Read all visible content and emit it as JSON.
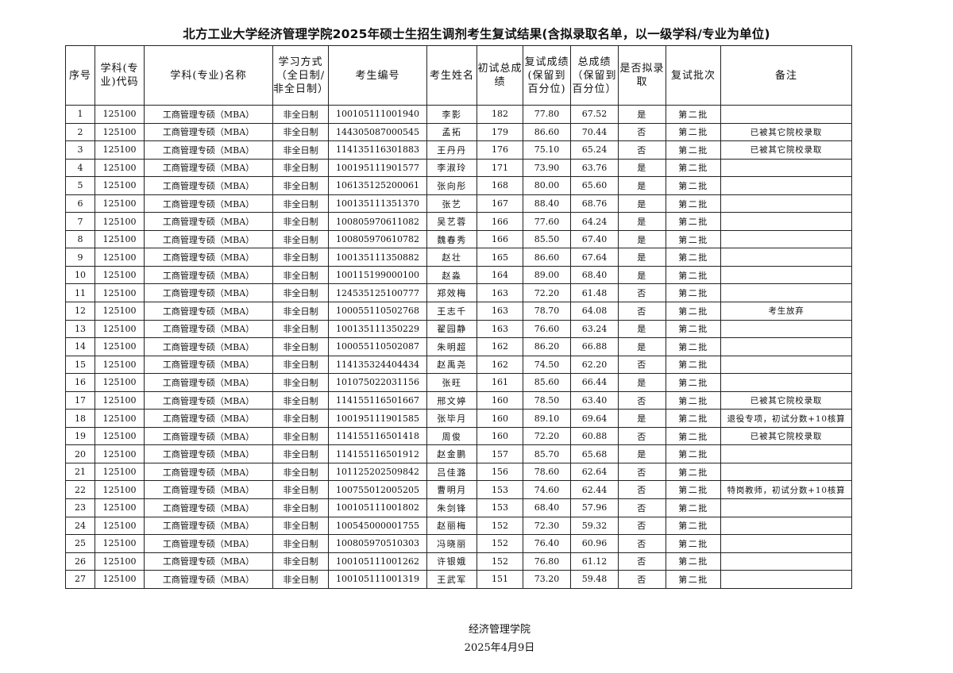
{
  "title": "北方工业大学经济管理学院2025年硕士生招生调剂考生复试结果(含拟录取名单，以一级学科/专业为单位)",
  "headers": [
    "序号",
    "学科(专业)代码",
    "学科(专业)名称",
    "学习方式（全日制/非全日制）",
    "考生编号",
    "考生姓名",
    "初试总成绩",
    "复试成绩(保留到百分位)",
    "总成绩（保留到百分位）",
    "是否拟录取",
    "复试批次",
    "备注"
  ],
  "rows": [
    [
      "1",
      "125100",
      "工商管理专硕（MBA）",
      "非全日制",
      "100105111001940",
      "李影",
      "182",
      "77.80",
      "67.52",
      "是",
      "第二批",
      ""
    ],
    [
      "2",
      "125100",
      "工商管理专硕（MBA）",
      "非全日制",
      "144305087000545",
      "孟拓",
      "179",
      "86.60",
      "70.44",
      "否",
      "第二批",
      "已被其它院校录取"
    ],
    [
      "3",
      "125100",
      "工商管理专硕（MBA）",
      "非全日制",
      "114135116301883",
      "王丹丹",
      "176",
      "75.10",
      "65.24",
      "否",
      "第二批",
      "已被其它院校录取"
    ],
    [
      "4",
      "125100",
      "工商管理专硕（MBA）",
      "非全日制",
      "100195111901577",
      "李淑玲",
      "171",
      "73.90",
      "63.76",
      "是",
      "第二批",
      ""
    ],
    [
      "5",
      "125100",
      "工商管理专硕（MBA）",
      "非全日制",
      "106135125200061",
      "张向彤",
      "168",
      "80.00",
      "65.60",
      "是",
      "第二批",
      ""
    ],
    [
      "6",
      "125100",
      "工商管理专硕（MBA）",
      "非全日制",
      "100135111351370",
      "张艺",
      "167",
      "88.40",
      "68.76",
      "是",
      "第二批",
      ""
    ],
    [
      "7",
      "125100",
      "工商管理专硕（MBA）",
      "非全日制",
      "100805970611082",
      "吴艺蓉",
      "166",
      "77.60",
      "64.24",
      "是",
      "第二批",
      ""
    ],
    [
      "8",
      "125100",
      "工商管理专硕（MBA）",
      "非全日制",
      "100805970610782",
      "魏春秀",
      "166",
      "85.50",
      "67.40",
      "是",
      "第二批",
      ""
    ],
    [
      "9",
      "125100",
      "工商管理专硕（MBA）",
      "非全日制",
      "100135111350882",
      "赵壮",
      "165",
      "86.60",
      "67.64",
      "是",
      "第二批",
      ""
    ],
    [
      "10",
      "125100",
      "工商管理专硕（MBA）",
      "非全日制",
      "100115199000100",
      "赵淼",
      "164",
      "89.00",
      "68.40",
      "是",
      "第二批",
      ""
    ],
    [
      "11",
      "125100",
      "工商管理专硕（MBA）",
      "非全日制",
      "124535125100777",
      "郑效梅",
      "163",
      "72.20",
      "61.48",
      "否",
      "第二批",
      ""
    ],
    [
      "12",
      "125100",
      "工商管理专硕（MBA）",
      "非全日制",
      "100055110502768",
      "王志千",
      "163",
      "78.70",
      "64.08",
      "否",
      "第二批",
      "考生放弃"
    ],
    [
      "13",
      "125100",
      "工商管理专硕（MBA）",
      "非全日制",
      "100135111350229",
      "翟园静",
      "163",
      "76.60",
      "63.24",
      "是",
      "第二批",
      ""
    ],
    [
      "14",
      "125100",
      "工商管理专硕（MBA）",
      "非全日制",
      "100055110502087",
      "朱明超",
      "162",
      "86.20",
      "66.88",
      "是",
      "第二批",
      ""
    ],
    [
      "15",
      "125100",
      "工商管理专硕（MBA）",
      "非全日制",
      "114135324404434",
      "赵禹尧",
      "162",
      "74.50",
      "62.20",
      "否",
      "第二批",
      ""
    ],
    [
      "16",
      "125100",
      "工商管理专硕（MBA）",
      "非全日制",
      "101075022031156",
      "张旺",
      "161",
      "85.60",
      "66.44",
      "是",
      "第二批",
      ""
    ],
    [
      "17",
      "125100",
      "工商管理专硕（MBA）",
      "非全日制",
      "114155116501667",
      "邢文婷",
      "160",
      "78.50",
      "63.40",
      "否",
      "第二批",
      "已被其它院校录取"
    ],
    [
      "18",
      "125100",
      "工商管理专硕（MBA）",
      "非全日制",
      "100195111901585",
      "张毕月",
      "160",
      "89.10",
      "69.64",
      "是",
      "第二批",
      "退役专项，初试分数+10核算"
    ],
    [
      "19",
      "125100",
      "工商管理专硕（MBA）",
      "非全日制",
      "114155116501418",
      "周俊",
      "160",
      "72.20",
      "60.88",
      "否",
      "第二批",
      "已被其它院校录取"
    ],
    [
      "20",
      "125100",
      "工商管理专硕（MBA）",
      "非全日制",
      "114155116501912",
      "赵金鹏",
      "157",
      "85.70",
      "65.68",
      "是",
      "第二批",
      ""
    ],
    [
      "21",
      "125100",
      "工商管理专硕（MBA）",
      "非全日制",
      "101125202509842",
      "吕佳潞",
      "156",
      "78.60",
      "62.64",
      "否",
      "第二批",
      ""
    ],
    [
      "22",
      "125100",
      "工商管理专硕（MBA）",
      "非全日制",
      "100755012005205",
      "曹明月",
      "153",
      "74.60",
      "62.44",
      "否",
      "第二批",
      "特岗教师，初试分数+10核算"
    ],
    [
      "23",
      "125100",
      "工商管理专硕（MBA）",
      "非全日制",
      "100105111001802",
      "朱剑锋",
      "153",
      "68.40",
      "57.96",
      "否",
      "第二批",
      ""
    ],
    [
      "24",
      "125100",
      "工商管理专硕（MBA）",
      "非全日制",
      "100545000001755",
      "赵丽梅",
      "152",
      "72.30",
      "59.32",
      "否",
      "第二批",
      ""
    ],
    [
      "25",
      "125100",
      "工商管理专硕（MBA）",
      "非全日制",
      "100805970510303",
      "冯晓丽",
      "152",
      "76.40",
      "60.96",
      "否",
      "第二批",
      ""
    ],
    [
      "26",
      "125100",
      "工商管理专硕（MBA）",
      "非全日制",
      "100105111001262",
      "许银娥",
      "152",
      "76.80",
      "61.12",
      "否",
      "第二批",
      ""
    ],
    [
      "27",
      "125100",
      "工商管理专硕（MBA）",
      "非全日制",
      "100105111001319",
      "王武军",
      "151",
      "73.20",
      "59.48",
      "否",
      "第二批",
      ""
    ]
  ],
  "footer": {
    "org": "经济管理学院",
    "date": "2025年4月9日"
  }
}
